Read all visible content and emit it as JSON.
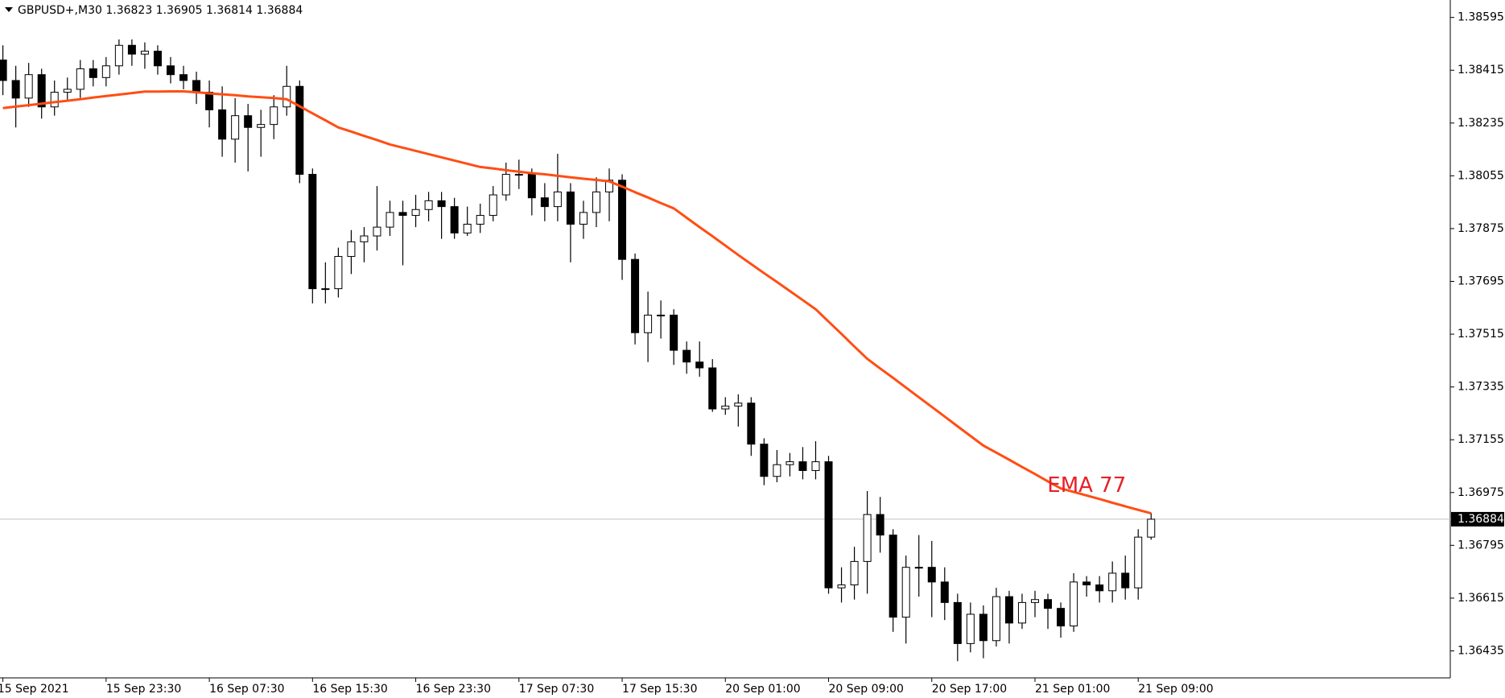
{
  "chart_data": {
    "type": "candlestick",
    "title": "GBPUSD+,M30  1.36823 1.36905 1.36814 1.36884",
    "open": [
      1.3845,
      1.3838,
      1.3832,
      1.384,
      1.3829,
      1.3834,
      1.3835,
      1.3842,
      1.3839,
      1.3843,
      1.385,
      1.3847,
      1.3848,
      1.3843,
      1.384,
      1.3838,
      1.3834,
      1.3828,
      1.3818,
      1.3826,
      1.3822,
      1.3823,
      1.3829,
      1.3836,
      1.3806,
      1.3767,
      1.3767,
      1.3778,
      1.3783,
      1.3785,
      1.3788,
      1.3793,
      1.3792,
      1.3794,
      1.3797,
      1.3795,
      1.3786,
      1.3789,
      1.3792,
      1.3799,
      1.3806,
      1.3806,
      1.3798,
      1.3795,
      1.38,
      1.3789,
      1.3793,
      1.38,
      1.3804,
      1.3777,
      1.3752,
      1.3758,
      1.3758,
      1.3746,
      1.3742,
      1.374,
      1.3726,
      1.3727,
      1.3728,
      1.3714,
      1.3703,
      1.3707,
      1.3708,
      1.3705,
      1.3708,
      1.3665,
      1.3666,
      1.3674,
      1.369,
      1.3683,
      1.3655,
      1.3672,
      1.3672,
      1.3667,
      1.366,
      1.3646,
      1.3656,
      1.3647,
      1.3662,
      1.3653,
      1.366,
      1.3661,
      1.3658,
      1.3652,
      1.3667,
      1.3666,
      1.3664,
      1.367,
      1.3665,
      1.36823
    ],
    "high": [
      1.385,
      1.3843,
      1.3844,
      1.3842,
      1.3838,
      1.3839,
      1.3845,
      1.3845,
      1.3846,
      1.3852,
      1.3852,
      1.3851,
      1.385,
      1.3846,
      1.3843,
      1.3841,
      1.3838,
      1.3836,
      1.3832,
      1.383,
      1.3828,
      1.3833,
      1.3843,
      1.3838,
      1.3808,
      1.3776,
      1.3781,
      1.3787,
      1.3788,
      1.3802,
      1.3797,
      1.3797,
      1.3799,
      1.38,
      1.38,
      1.3798,
      1.3795,
      1.3796,
      1.3802,
      1.381,
      1.3811,
      1.3808,
      1.3803,
      1.3813,
      1.3803,
      1.3797,
      1.3805,
      1.3808,
      1.3806,
      1.3779,
      1.3766,
      1.3763,
      1.376,
      1.3749,
      1.3749,
      1.3743,
      1.373,
      1.3731,
      1.373,
      1.3716,
      1.3712,
      1.3711,
      1.3713,
      1.3715,
      1.371,
      1.3672,
      1.3679,
      1.3698,
      1.3696,
      1.3685,
      1.3676,
      1.3683,
      1.3681,
      1.3672,
      1.3663,
      1.366,
      1.3659,
      1.3665,
      1.3664,
      1.3663,
      1.3664,
      1.3663,
      1.366,
      1.367,
      1.3669,
      1.3669,
      1.3674,
      1.3676,
      1.3685,
      1.36905
    ],
    "low": [
      1.3833,
      1.3822,
      1.3829,
      1.3825,
      1.3826,
      1.3831,
      1.3832,
      1.3836,
      1.3836,
      1.384,
      1.3843,
      1.3842,
      1.384,
      1.3837,
      1.3835,
      1.383,
      1.3822,
      1.3812,
      1.381,
      1.3807,
      1.3812,
      1.3818,
      1.3826,
      1.3803,
      1.3762,
      1.3762,
      1.3764,
      1.3772,
      1.3776,
      1.378,
      1.3785,
      1.3775,
      1.3788,
      1.379,
      1.3784,
      1.3784,
      1.3785,
      1.3786,
      1.379,
      1.3797,
      1.3801,
      1.3792,
      1.379,
      1.379,
      1.3776,
      1.3784,
      1.3788,
      1.379,
      1.377,
      1.3748,
      1.3742,
      1.375,
      1.3741,
      1.3738,
      1.3737,
      1.3725,
      1.3724,
      1.372,
      1.371,
      1.37,
      1.3701,
      1.3703,
      1.3702,
      1.3702,
      1.3663,
      1.366,
      1.3661,
      1.3663,
      1.3677,
      1.365,
      1.3646,
      1.3662,
      1.3655,
      1.3654,
      1.364,
      1.3643,
      1.3641,
      1.3645,
      1.3646,
      1.3651,
      1.3655,
      1.3651,
      1.3648,
      1.365,
      1.3662,
      1.366,
      1.366,
      1.3661,
      1.3661,
      1.36814
    ],
    "close": [
      1.3838,
      1.3832,
      1.384,
      1.3829,
      1.3834,
      1.3835,
      1.3842,
      1.3839,
      1.3843,
      1.385,
      1.3847,
      1.3848,
      1.3843,
      1.384,
      1.3838,
      1.3834,
      1.3828,
      1.3818,
      1.3826,
      1.3822,
      1.3823,
      1.3829,
      1.3836,
      1.3806,
      1.3767,
      1.3767,
      1.3778,
      1.3783,
      1.3785,
      1.3788,
      1.3793,
      1.3792,
      1.3794,
      1.3797,
      1.3795,
      1.3786,
      1.3789,
      1.3792,
      1.3799,
      1.3806,
      1.3806,
      1.3798,
      1.3795,
      1.38,
      1.3789,
      1.3793,
      1.38,
      1.3804,
      1.3777,
      1.3752,
      1.3758,
      1.3758,
      1.3746,
      1.3742,
      1.374,
      1.3726,
      1.3727,
      1.3728,
      1.3714,
      1.3703,
      1.3707,
      1.3708,
      1.3705,
      1.3708,
      1.3665,
      1.3666,
      1.3674,
      1.369,
      1.3683,
      1.3655,
      1.3672,
      1.3672,
      1.3667,
      1.366,
      1.3646,
      1.3656,
      1.3647,
      1.3662,
      1.3653,
      1.366,
      1.3661,
      1.3658,
      1.3652,
      1.3667,
      1.3666,
      1.3664,
      1.367,
      1.3665,
      1.36823,
      1.36884
    ],
    "ema": {
      "name": "EMA 77",
      "color": "#ff4e14",
      "label_color": "#e8202a",
      "values": [
        1.38286,
        1.38291,
        1.38296,
        1.38301,
        1.38306,
        1.38311,
        1.38316,
        1.38322,
        1.38327,
        1.38332,
        1.38337,
        1.38342,
        1.38342,
        1.38343,
        1.38343,
        1.3834,
        1.38336,
        1.38333,
        1.3833,
        1.38326,
        1.38323,
        1.3832,
        1.38316,
        1.38292,
        1.38268,
        1.38244,
        1.3822,
        1.38206,
        1.38191,
        1.38177,
        1.38162,
        1.38151,
        1.3814,
        1.38129,
        1.38118,
        1.38107,
        1.38096,
        1.38085,
        1.3808,
        1.38074,
        1.38069,
        1.38064,
        1.3806,
        1.38055,
        1.3805,
        1.38045,
        1.38041,
        1.38036,
        1.38018,
        1.37999,
        1.37981,
        1.37962,
        1.37944,
        1.37912,
        1.3788,
        1.37849,
        1.37817,
        1.37785,
        1.37754,
        1.37723,
        1.37693,
        1.37662,
        1.37631,
        1.376,
        1.37558,
        1.37516,
        1.37473,
        1.37431,
        1.37398,
        1.37366,
        1.37333,
        1.373,
        1.37267,
        1.37234,
        1.37201,
        1.37168,
        1.37135,
        1.37111,
        1.37087,
        1.37062,
        1.37038,
        1.37013,
        1.36989,
        1.36977,
        1.36965,
        1.36953,
        1.3694,
        1.36928,
        1.36916,
        1.36904
      ]
    },
    "last_price": 1.36884,
    "ylim": [
      1.36343,
      1.38638
    ],
    "yticks": [
      1.36435,
      1.36615,
      1.36795,
      1.36975,
      1.37155,
      1.37335,
      1.37515,
      1.37695,
      1.37875,
      1.38055,
      1.38235,
      1.38415,
      1.38595
    ],
    "xticks": [
      {
        "value": 0,
        "label": "15 Sep 2021"
      },
      {
        "value": 8,
        "label": "15 Sep 23:30"
      },
      {
        "value": 16,
        "label": "16 Sep 07:30"
      },
      {
        "value": 24,
        "label": "16 Sep 15:30"
      },
      {
        "value": 32,
        "label": "16 Sep 23:30"
      },
      {
        "value": 40,
        "label": "17 Sep 07:30"
      },
      {
        "value": 48,
        "label": "17 Sep 15:30"
      },
      {
        "value": 56,
        "label": "20 Sep 01:00"
      },
      {
        "value": 64,
        "label": "20 Sep 09:00"
      },
      {
        "value": 72,
        "label": "20 Sep 17:00"
      },
      {
        "value": 80,
        "label": "21 Sep 01:00"
      },
      {
        "value": 88,
        "label": "21 Sep 09:00"
      }
    ]
  }
}
